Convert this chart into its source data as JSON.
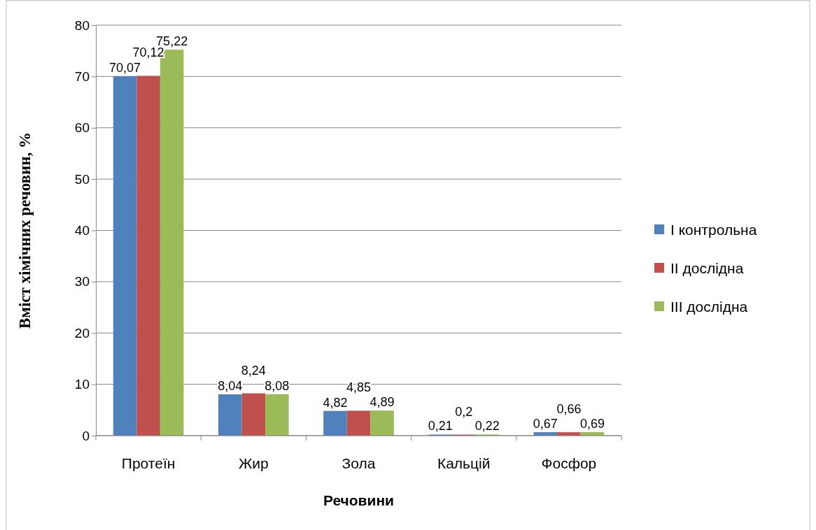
{
  "chart_data": {
    "type": "bar",
    "xlabel": "Речовини",
    "ylabel": "Вміст хімічних речовин, %",
    "categories": [
      "Протеїн",
      "Жир",
      "Зола",
      "Кальцій",
      "Фосфор"
    ],
    "series": [
      {
        "name": "I контрольна",
        "color": "#4f81bd",
        "values": [
          70.07,
          8.04,
          4.82,
          0.21,
          0.67
        ],
        "value_labels": [
          "70,07",
          "8,04",
          "4,82",
          "0,21",
          "0,67"
        ]
      },
      {
        "name": "II дослідна",
        "color": "#c0504d",
        "values": [
          70.12,
          8.24,
          4.85,
          0.2,
          0.66
        ],
        "value_labels": [
          "70,12",
          "8,24",
          "4,85",
          "0,2",
          "0,66"
        ]
      },
      {
        "name": "III дослідна",
        "color": "#9bbb59",
        "values": [
          75.22,
          8.08,
          4.89,
          0.22,
          0.69
        ],
        "value_labels": [
          "75,22",
          "8,08",
          "4,89",
          "0,22",
          "0,69"
        ]
      }
    ],
    "ylim": [
      0,
      80
    ],
    "yticks": [
      0,
      10,
      20,
      30,
      40,
      50,
      60,
      70,
      80
    ],
    "grid": "y",
    "legend": "right"
  }
}
